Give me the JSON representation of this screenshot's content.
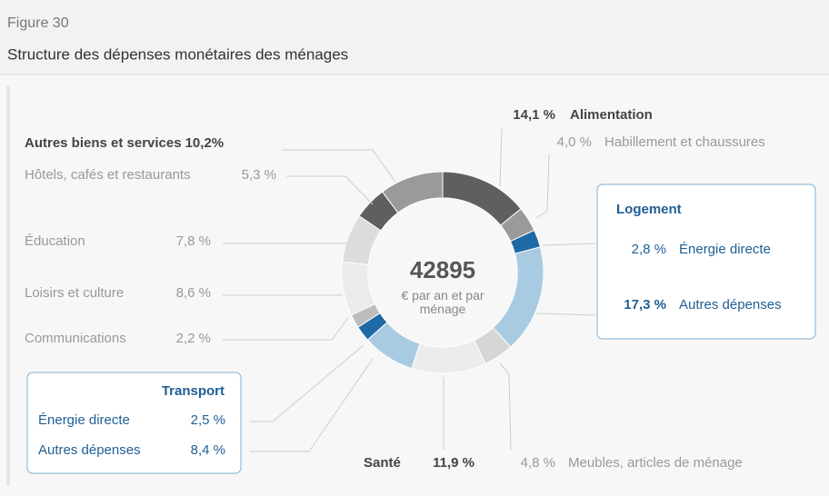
{
  "figure_label": "Figure 30",
  "chart_data": {
    "type": "pie",
    "title": "Structure des dépenses monétaires des ménages",
    "total": 42895,
    "total_label": "€ par an et par ménage",
    "group_titles": [
      "Logement",
      "Transport"
    ],
    "categories": [
      "Alimentation",
      "Habillement et chaussures",
      "Énergie directe",
      "Autres dépenses",
      "Meubles, articles de ménage",
      "Santé",
      "Autres dépenses",
      "Énergie directe",
      "Communications",
      "Loisirs et culture",
      "Éducation",
      "Hôtels, cafés et restaurants",
      "Autres biens et services"
    ],
    "values": [
      14.1,
      4.0,
      2.8,
      17.3,
      4.8,
      11.9,
      8.4,
      2.5,
      2.2,
      8.6,
      7.8,
      5.3,
      10.2
    ],
    "value_labels": [
      "14,1 %",
      "4,0 %",
      "2,8 %",
      "17,3 %",
      "4,8 %",
      "11,9 %",
      "8,4 %",
      "2,5 %",
      "2,2 %",
      "8,6 %",
      "7,8 %",
      "5,3 %",
      "10,2%"
    ],
    "colors": [
      "#5f5f5f",
      "#9a9a9a",
      "#1f6aa5",
      "#a9cbe2",
      "#d6d6d6",
      "#ececec",
      "#a9cbe2",
      "#1f6aa5",
      "#bdbdbd",
      "#ebebeb",
      "#dcdcdc",
      "#5f5f5f",
      "#9a9a9a"
    ],
    "inner_radius_ratio": 0.74
  }
}
